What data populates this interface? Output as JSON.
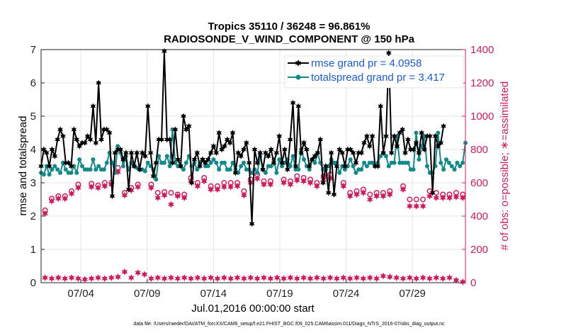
{
  "chart_data": {
    "type": "line",
    "title": "Tropics 35110 / 36248 = 96.861%",
    "subtitle": "RADIOSONDE_V_WIND_COMPONENT @ 150 hPa",
    "xlabel": "Jul.01,2016 00:00:00 start",
    "ylabel": "rmse and totalspread",
    "ylabel_right": "# of obs: o=possible; ∗=assimilated",
    "xlim": [
      1,
      33
    ],
    "ylim": [
      0,
      7
    ],
    "ylim_right": [
      0,
      1400
    ],
    "x_tick_values": [
      4,
      9,
      14,
      19,
      24,
      29
    ],
    "x_tick_labels": [
      "07/04",
      "07/09",
      "07/14",
      "07/19",
      "07/24",
      "07/29"
    ],
    "y_ticks": [
      "0",
      "1",
      "2",
      "3",
      "4",
      "5",
      "6",
      "7"
    ],
    "y_ticks_right": [
      "0",
      "200",
      "400",
      "600",
      "800",
      "1000",
      "1200",
      "1400"
    ],
    "grid": true,
    "legend_position": "top-right",
    "colors": {
      "rmse": "#000000",
      "spread": "#138a8a",
      "obs": "#d11a5c",
      "axis_right": "#d11a5c",
      "legend_text": "#1a5ad6"
    },
    "series": [
      {
        "name": "rmse grand pr = 4.0958",
        "marker": "hexagram",
        "values": [
          3.5,
          4.0,
          3.9,
          3.5,
          4.0,
          3.8,
          4.3,
          4.6,
          4.4,
          3.6,
          3.6,
          3.5,
          4.6,
          4.3,
          4.1,
          4.2,
          4.2,
          4.4,
          4.3,
          5.3,
          4.2,
          6.0,
          4.3,
          4.6,
          4.6,
          4.5,
          2.6,
          3.9,
          4.0,
          4.0,
          3.7,
          3.9,
          2.8,
          3.9,
          3.5,
          3.9,
          3.4,
          3.9,
          3.8,
          5.3,
          3.9,
          3.2,
          3.6,
          4.3,
          4.3,
          6.95,
          4.3,
          4.3,
          3.6,
          4.6,
          3.7,
          3.5,
          5.0,
          4.6,
          4.7,
          3.0,
          3.7,
          3.9,
          3.5,
          3.7,
          3.6,
          3.7,
          3.9,
          4.1,
          3.9,
          4.5,
          4.0,
          4.1,
          4.3,
          4.2,
          4.5,
          3.3,
          3.9,
          3.8,
          4.0,
          4.2,
          3.6,
          1.77,
          4.0,
          3.6,
          3.9,
          3.4,
          3.9,
          3.8,
          4.0,
          3.6,
          3.9,
          4.4,
          3.6,
          4.0,
          3.4,
          4.3,
          5.4,
          3.5,
          5.3,
          3.9,
          4.2,
          4.0,
          3.5,
          3.7,
          3.8,
          3.9,
          4.3,
          3.0,
          3.5,
          2.7,
          3.9,
          2.65,
          3.5,
          4.0,
          3.9,
          3.5,
          4.0,
          4.0,
          3.9,
          3.6,
          3.9,
          3.9,
          4.2,
          4.4,
          4.1,
          4.4,
          3.5,
          3.5,
          5.3,
          3.9,
          4.4,
          6.9,
          3.9,
          4.4,
          4.1,
          4.5,
          4.6,
          3.9,
          4.3,
          4.0,
          4.0,
          4.2,
          3.9,
          4.5,
          4.0,
          4.4,
          4.4,
          2.7,
          4.4,
          4.1,
          4.2,
          4.7
        ]
      },
      {
        "name": "totalspread grand pr = 3.417",
        "marker": "circle",
        "values": [
          3.3,
          3.25,
          3.5,
          3.25,
          3.4,
          3.5,
          3.4,
          3.3,
          3.6,
          3.4,
          3.3,
          3.3,
          3.5,
          3.3,
          3.7,
          3.5,
          3.4,
          3.4,
          3.4,
          3.7,
          3.4,
          3.5,
          3.4,
          3.4,
          3.6,
          3.9,
          3.6,
          3.3,
          4.1,
          3.9,
          3.5,
          3.8,
          3.4,
          3.6,
          3.5,
          3.45,
          3.4,
          3.4,
          3.35,
          3.6,
          3.5,
          3.4,
          3.1,
          3.8,
          3.6,
          3.6,
          3.8,
          3.5,
          4.6,
          3.6,
          3.5,
          3.5,
          3.4,
          3.6,
          3.8,
          3.5,
          3.6,
          3.4,
          3.6,
          3.7,
          3.5,
          3.5,
          3.6,
          3.7,
          3.6,
          3.4,
          3.6,
          3.6,
          3.4,
          3.4,
          3.6,
          3.4,
          3.3,
          3.5,
          3.6,
          3.4,
          3.4,
          3.3,
          3.4,
          3.3,
          3.8,
          3.4,
          3.3,
          3.5,
          3.5,
          3.7,
          3.3,
          3.7,
          3.5,
          3.6,
          3.7,
          3.5,
          3.8,
          3.4,
          3.4,
          4.0,
          3.7,
          3.5,
          3.4,
          3.7,
          3.6,
          3.9,
          3.6,
          3.4,
          3.4,
          3.5,
          3.7,
          3.6,
          3.6,
          3.3,
          3.5,
          3.4,
          3.5,
          3.7,
          3.5,
          3.3,
          3.4,
          3.4,
          3.6,
          3.5,
          3.6,
          3.6,
          3.5,
          3.6,
          3.8,
          3.9,
          3.8,
          3.5,
          3.6,
          3.6,
          4.4,
          3.6,
          3.6,
          3.6,
          3.6,
          3.4,
          3.4,
          4.5,
          3.7,
          4.1,
          4.4,
          3.5,
          3.3,
          3.3,
          3.5,
          4.5,
          3.6,
          3.4,
          3.7,
          3.6,
          3.5,
          3.4,
          3.6,
          3.5,
          3.6,
          4.2
        ]
      }
    ],
    "obs_possible": [
      {
        "x": 1.3,
        "v": 435
      },
      {
        "x": 1.8,
        "v": 505
      },
      {
        "x": 2.3,
        "v": 520
      },
      {
        "x": 2.8,
        "v": 520
      },
      {
        "x": 3.3,
        "v": 550
      },
      {
        "x": 3.8,
        "v": 590
      },
      {
        "x": 4.8,
        "v": 595
      },
      {
        "x": 5.3,
        "v": 585
      },
      {
        "x": 5.8,
        "v": 600
      },
      {
        "x": 6.3,
        "v": 600
      },
      {
        "x": 6.8,
        "v": 690
      },
      {
        "x": 7.3,
        "v": 540
      },
      {
        "x": 7.8,
        "v": 570
      },
      {
        "x": 8.3,
        "v": 590
      },
      {
        "x": 9.3,
        "v": 590
      },
      {
        "x": 9.8,
        "v": 540
      },
      {
        "x": 10.3,
        "v": 545
      },
      {
        "x": 10.8,
        "v": 540
      },
      {
        "x": 11.3,
        "v": 530
      },
      {
        "x": 11.8,
        "v": 530
      },
      {
        "x": 12.3,
        "v": 630
      },
      {
        "x": 12.8,
        "v": 600
      },
      {
        "x": 13.3,
        "v": 630
      },
      {
        "x": 13.8,
        "v": 580
      },
      {
        "x": 14.3,
        "v": 580
      },
      {
        "x": 14.8,
        "v": 600
      },
      {
        "x": 15.3,
        "v": 600
      },
      {
        "x": 15.8,
        "v": 600
      },
      {
        "x": 16.3,
        "v": 550
      },
      {
        "x": 16.8,
        "v": 620
      },
      {
        "x": 17.3,
        "v": 650
      },
      {
        "x": 17.8,
        "v": 610
      },
      {
        "x": 18.3,
        "v": 610
      },
      {
        "x": 19.3,
        "v": 620
      },
      {
        "x": 19.8,
        "v": 610
      },
      {
        "x": 20.3,
        "v": 640
      },
      {
        "x": 20.8,
        "v": 630
      },
      {
        "x": 21.3,
        "v": 620
      },
      {
        "x": 21.8,
        "v": 600
      },
      {
        "x": 22.3,
        "v": 640
      },
      {
        "x": 22.8,
        "v": 650
      },
      {
        "x": 23.8,
        "v": 600
      },
      {
        "x": 24.3,
        "v": 540
      },
      {
        "x": 24.8,
        "v": 550
      },
      {
        "x": 25.3,
        "v": 560
      },
      {
        "x": 25.8,
        "v": 530
      },
      {
        "x": 26.3,
        "v": 540
      },
      {
        "x": 26.8,
        "v": 540
      },
      {
        "x": 27.3,
        "v": 550
      },
      {
        "x": 28.3,
        "v": 580
      },
      {
        "x": 28.8,
        "v": 500
      },
      {
        "x": 29.3,
        "v": 500
      },
      {
        "x": 29.8,
        "v": 500
      },
      {
        "x": 30.3,
        "v": 550
      },
      {
        "x": 30.8,
        "v": 540
      },
      {
        "x": 31.3,
        "v": 530
      },
      {
        "x": 31.8,
        "v": 530
      },
      {
        "x": 32.3,
        "v": 540
      },
      {
        "x": 32.8,
        "v": 530
      }
    ],
    "obs_assimilated": [
      {
        "x": 1.3,
        "v": 415
      },
      {
        "x": 1.8,
        "v": 490
      },
      {
        "x": 2.3,
        "v": 505
      },
      {
        "x": 2.8,
        "v": 505
      },
      {
        "x": 3.3,
        "v": 535
      },
      {
        "x": 3.8,
        "v": 570
      },
      {
        "x": 4.8,
        "v": 575
      },
      {
        "x": 5.3,
        "v": 570
      },
      {
        "x": 5.8,
        "v": 580
      },
      {
        "x": 6.3,
        "v": 590
      },
      {
        "x": 6.8,
        "v": 665
      },
      {
        "x": 7.3,
        "v": 525
      },
      {
        "x": 7.8,
        "v": 555
      },
      {
        "x": 8.3,
        "v": 575
      },
      {
        "x": 9.3,
        "v": 570
      },
      {
        "x": 9.8,
        "v": 510
      },
      {
        "x": 10.3,
        "v": 525
      },
      {
        "x": 10.8,
        "v": 470
      },
      {
        "x": 11.3,
        "v": 520
      },
      {
        "x": 11.8,
        "v": 510
      },
      {
        "x": 12.3,
        "v": 610
      },
      {
        "x": 12.8,
        "v": 580
      },
      {
        "x": 13.3,
        "v": 610
      },
      {
        "x": 13.8,
        "v": 560
      },
      {
        "x": 14.3,
        "v": 560
      },
      {
        "x": 14.8,
        "v": 575
      },
      {
        "x": 15.3,
        "v": 575
      },
      {
        "x": 15.8,
        "v": 580
      },
      {
        "x": 16.3,
        "v": 525
      },
      {
        "x": 16.8,
        "v": 600
      },
      {
        "x": 17.3,
        "v": 625
      },
      {
        "x": 17.8,
        "v": 590
      },
      {
        "x": 18.3,
        "v": 590
      },
      {
        "x": 19.3,
        "v": 600
      },
      {
        "x": 19.8,
        "v": 590
      },
      {
        "x": 20.3,
        "v": 615
      },
      {
        "x": 20.8,
        "v": 610
      },
      {
        "x": 21.3,
        "v": 600
      },
      {
        "x": 21.8,
        "v": 580
      },
      {
        "x": 22.3,
        "v": 620
      },
      {
        "x": 22.8,
        "v": 625
      },
      {
        "x": 23.8,
        "v": 580
      },
      {
        "x": 24.3,
        "v": 520
      },
      {
        "x": 24.8,
        "v": 530
      },
      {
        "x": 25.3,
        "v": 540
      },
      {
        "x": 25.8,
        "v": 500
      },
      {
        "x": 26.3,
        "v": 520
      },
      {
        "x": 26.8,
        "v": 520
      },
      {
        "x": 27.3,
        "v": 530
      },
      {
        "x": 28.3,
        "v": 560
      },
      {
        "x": 28.8,
        "v": 460
      },
      {
        "x": 29.3,
        "v": 460
      },
      {
        "x": 29.8,
        "v": 460
      },
      {
        "x": 30.3,
        "v": 520
      },
      {
        "x": 30.8,
        "v": 510
      },
      {
        "x": 31.3,
        "v": 510
      },
      {
        "x": 31.8,
        "v": 510
      },
      {
        "x": 32.3,
        "v": 515
      },
      {
        "x": 32.8,
        "v": 510
      }
    ],
    "obs_low": [
      {
        "x": 1.3,
        "v": 30
      },
      {
        "x": 1.8,
        "v": 25
      },
      {
        "x": 2.3,
        "v": 30
      },
      {
        "x": 2.8,
        "v": 25
      },
      {
        "x": 3.3,
        "v": 30
      },
      {
        "x": 3.8,
        "v": 25
      },
      {
        "x": 4.3,
        "v": 20
      },
      {
        "x": 4.8,
        "v": 25
      },
      {
        "x": 5.3,
        "v": 30
      },
      {
        "x": 5.8,
        "v": 25
      },
      {
        "x": 6.3,
        "v": 30
      },
      {
        "x": 6.8,
        "v": 35
      },
      {
        "x": 7.3,
        "v": 65
      },
      {
        "x": 7.8,
        "v": 30
      },
      {
        "x": 8.3,
        "v": 60
      },
      {
        "x": 8.8,
        "v": 50
      },
      {
        "x": 9.3,
        "v": 25
      },
      {
        "x": 9.8,
        "v": 30
      },
      {
        "x": 10.3,
        "v": 25
      },
      {
        "x": 10.8,
        "v": 30
      },
      {
        "x": 11.3,
        "v": 25
      },
      {
        "x": 11.8,
        "v": 30
      },
      {
        "x": 12.3,
        "v": 25
      },
      {
        "x": 12.8,
        "v": 30
      },
      {
        "x": 13.3,
        "v": 25
      },
      {
        "x": 13.8,
        "v": 30
      },
      {
        "x": 14.3,
        "v": 25
      },
      {
        "x": 14.8,
        "v": 30
      },
      {
        "x": 15.3,
        "v": 25
      },
      {
        "x": 15.8,
        "v": 30
      },
      {
        "x": 16.3,
        "v": 25
      },
      {
        "x": 16.8,
        "v": 30
      },
      {
        "x": 17.3,
        "v": 25
      },
      {
        "x": 17.8,
        "v": 30
      },
      {
        "x": 18.3,
        "v": 25
      },
      {
        "x": 18.8,
        "v": 30
      },
      {
        "x": 19.3,
        "v": 25
      },
      {
        "x": 19.8,
        "v": 30
      },
      {
        "x": 20.3,
        "v": 25
      },
      {
        "x": 20.8,
        "v": 30
      },
      {
        "x": 21.3,
        "v": 25
      },
      {
        "x": 21.8,
        "v": 30
      },
      {
        "x": 22.3,
        "v": 25
      },
      {
        "x": 22.8,
        "v": 30
      },
      {
        "x": 23.3,
        "v": 25
      },
      {
        "x": 23.8,
        "v": 30
      },
      {
        "x": 24.3,
        "v": 25
      },
      {
        "x": 24.8,
        "v": 30
      },
      {
        "x": 25.3,
        "v": 25
      },
      {
        "x": 25.8,
        "v": 30
      },
      {
        "x": 26.3,
        "v": 25
      },
      {
        "x": 26.8,
        "v": 40
      },
      {
        "x": 27.3,
        "v": 35
      },
      {
        "x": 27.8,
        "v": 30
      },
      {
        "x": 28.3,
        "v": 25
      },
      {
        "x": 28.8,
        "v": 30
      },
      {
        "x": 29.3,
        "v": 25
      },
      {
        "x": 29.8,
        "v": 30
      },
      {
        "x": 30.3,
        "v": 25
      },
      {
        "x": 30.8,
        "v": 30
      },
      {
        "x": 31.3,
        "v": 25
      },
      {
        "x": 31.8,
        "v": 30
      },
      {
        "x": 32.3,
        "v": 15
      },
      {
        "x": 32.8,
        "v": 5
      }
    ]
  },
  "footer": "data file: /Users/raeder/DAI/ATM_forcXX/CAM6_setup/f.e21.FHIST_BGC.f09_025.CAM6assim.011/Diags_NTrS_2016-07/obs_diag_output.nc"
}
